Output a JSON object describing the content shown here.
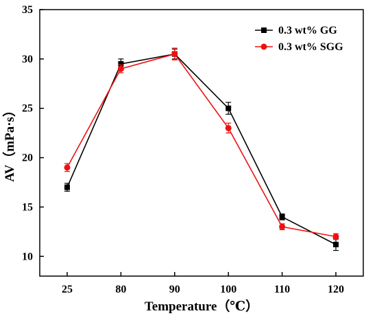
{
  "chart_data": {
    "type": "line",
    "categories": [
      "25",
      "80",
      "90",
      "100",
      "110",
      "120"
    ],
    "xlabel": "Temperature（℃）",
    "ylabel": "AV（mPa·s）",
    "ylim": [
      8,
      35
    ],
    "yticks": [
      10,
      15,
      20,
      25,
      30,
      35
    ],
    "grid": false,
    "legend_position": "top-right",
    "error_bars": true,
    "series": [
      {
        "name": "0.3 wt% GG",
        "color": "#000000",
        "marker": "square",
        "values": [
          17.0,
          29.5,
          30.5,
          25.0,
          14.0,
          11.2
        ],
        "errors": [
          0.4,
          0.5,
          0.5,
          0.6,
          0.3,
          0.6
        ]
      },
      {
        "name": "0.3 wt% SGG",
        "color": "#ee1111",
        "marker": "circle",
        "values": [
          19.0,
          29.0,
          30.5,
          23.0,
          13.0,
          12.0
        ],
        "errors": [
          0.4,
          0.4,
          0.6,
          0.5,
          0.3,
          0.3
        ]
      }
    ]
  }
}
